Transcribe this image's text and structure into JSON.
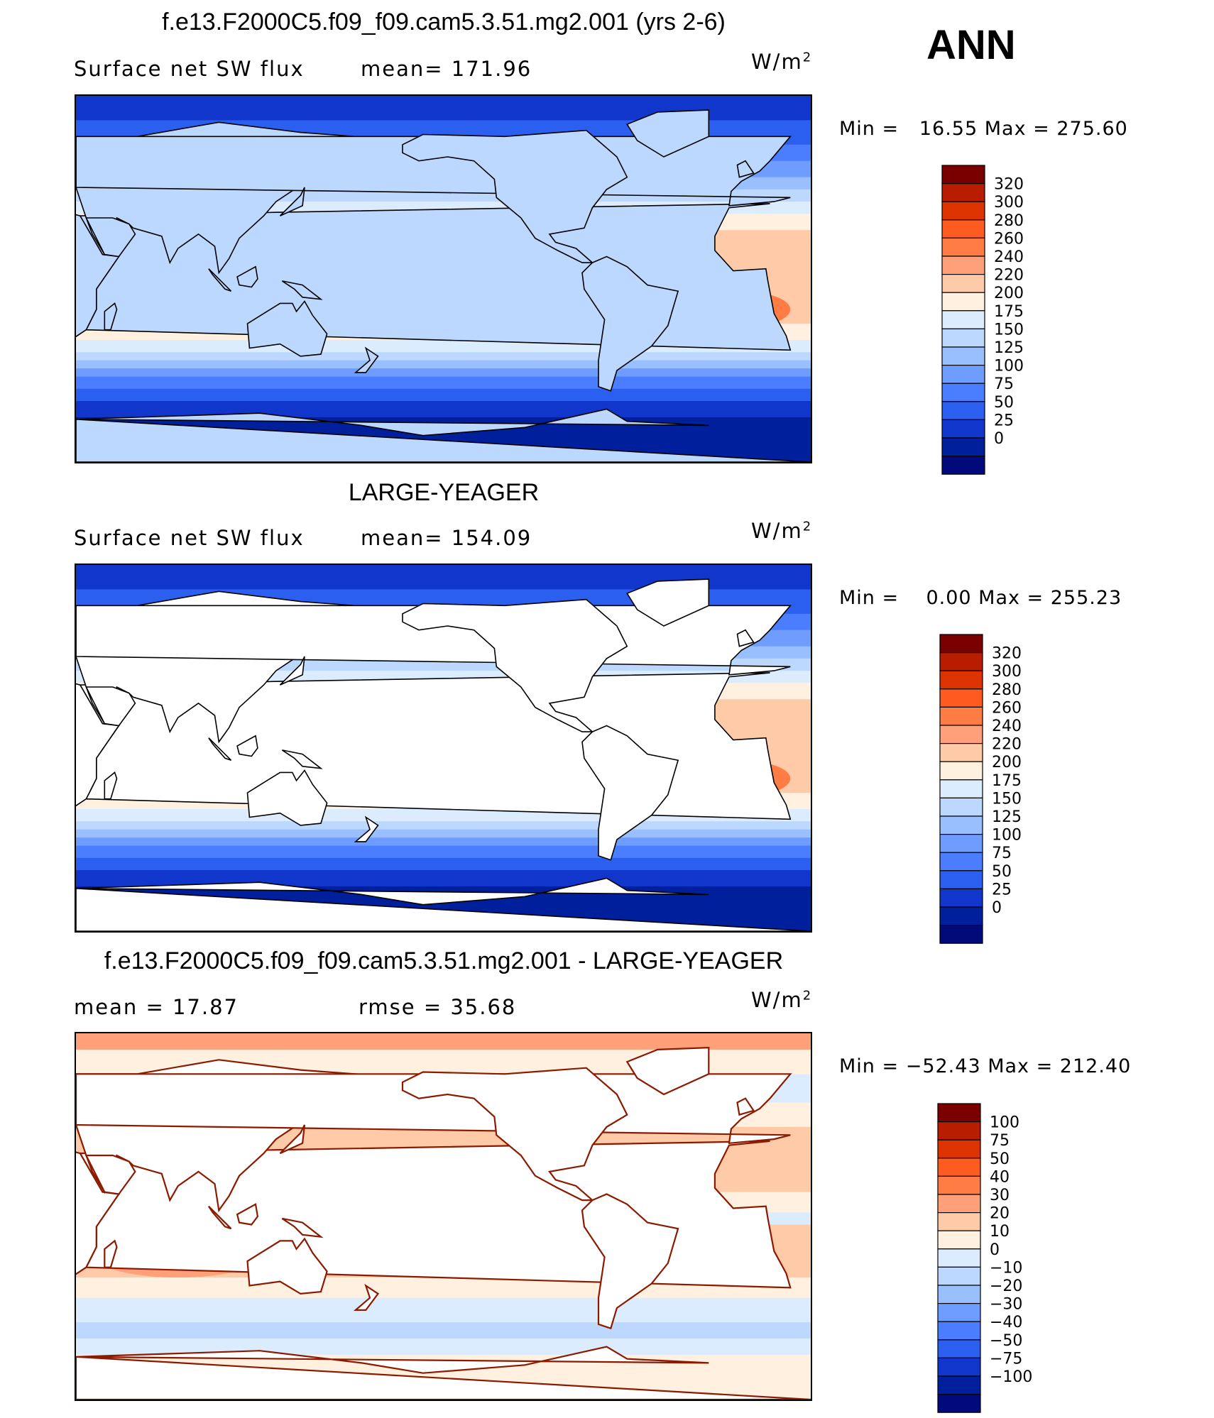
{
  "season": "ANN",
  "panels": [
    {
      "title": "f.e13.F2000C5.f09_f09.cam5.3.51.mg2.001 (yrs 2-6)",
      "left_text": "Surface net SW flux",
      "mid_text": "mean= 171.96",
      "units": "W/m",
      "units_sup": "2",
      "minmax": "Min =   16.55 Max = 275.60",
      "colorbar_levels": [
        "320",
        "300",
        "280",
        "260",
        "240",
        "220",
        "200",
        "175",
        "150",
        "125",
        "100",
        "75",
        "50",
        "25",
        "0"
      ],
      "colorbar_colors": [
        "#7a0000",
        "#b81d00",
        "#dd3300",
        "#ff5a1f",
        "#ff7c44",
        "#ffa07a",
        "#ffcaa8",
        "#fff0e0",
        "#dcecff",
        "#bcd8ff",
        "#99bfff",
        "#6f9dff",
        "#4a7dff",
        "#2a5fef",
        "#1036cc",
        "#001f9c",
        "#000a7a"
      ],
      "land_masked": false
    },
    {
      "title": "LARGE-YEAGER",
      "left_text": "Surface net SW flux",
      "mid_text": "mean= 154.09",
      "units": "W/m",
      "units_sup": "2",
      "minmax": "Min =    0.00 Max = 255.23",
      "colorbar_levels": [
        "320",
        "300",
        "280",
        "260",
        "240",
        "220",
        "200",
        "175",
        "150",
        "125",
        "100",
        "75",
        "50",
        "25",
        "0"
      ],
      "colorbar_colors": [
        "#7a0000",
        "#b81d00",
        "#dd3300",
        "#ff5a1f",
        "#ff7c44",
        "#ffa07a",
        "#ffcaa8",
        "#fff0e0",
        "#dcecff",
        "#bcd8ff",
        "#99bfff",
        "#6f9dff",
        "#4a7dff",
        "#2a5fef",
        "#1036cc",
        "#001f9c",
        "#000a7a"
      ],
      "land_masked": true
    },
    {
      "title": "f.e13.F2000C5.f09_f09.cam5.3.51.mg2.001 - LARGE-YEAGER",
      "left_text": "mean =    17.87",
      "mid_text": "rmse =    35.68",
      "units": "W/m",
      "units_sup": "2",
      "minmax": "Min = −52.43 Max = 212.40",
      "colorbar_levels": [
        "100",
        "75",
        "50",
        "40",
        "30",
        "20",
        "10",
        "0",
        "−10",
        "−20",
        "−30",
        "−40",
        "−50",
        "−75",
        "−100"
      ],
      "colorbar_colors": [
        "#7a0000",
        "#b81d00",
        "#dd3300",
        "#ff5a1f",
        "#ff7c44",
        "#ffa07a",
        "#ffcaa8",
        "#fff0e0",
        "#dcecff",
        "#bcd8ff",
        "#99bfff",
        "#6f9dff",
        "#4a7dff",
        "#2a5fef",
        "#1036cc",
        "#001f9c",
        "#000a7a"
      ],
      "land_masked": true
    }
  ],
  "chart_data": [
    {
      "type": "heatmap",
      "title": "f.e13.F2000C5.f09_f09.cam5.3.51.mg2.001 (yrs 2-6)",
      "subtitle": "Surface net SW flux",
      "units": "W/m2",
      "mean": 171.96,
      "min": 16.55,
      "max": 275.6,
      "levels": [
        0,
        25,
        50,
        75,
        100,
        125,
        150,
        175,
        200,
        220,
        240,
        260,
        280,
        300,
        320
      ]
    },
    {
      "type": "heatmap",
      "title": "LARGE-YEAGER",
      "subtitle": "Surface net SW flux",
      "units": "W/m2",
      "mean": 154.09,
      "min": 0.0,
      "max": 255.23,
      "levels": [
        0,
        25,
        50,
        75,
        100,
        125,
        150,
        175,
        200,
        220,
        240,
        260,
        280,
        300,
        320
      ]
    },
    {
      "type": "heatmap",
      "title": "f.e13.F2000C5.f09_f09.cam5.3.51.mg2.001 - LARGE-YEAGER",
      "units": "W/m2",
      "mean": 17.87,
      "rmse": 35.68,
      "min": -52.43,
      "max": 212.4,
      "levels": [
        -100,
        -75,
        -50,
        -40,
        -30,
        -20,
        -10,
        0,
        10,
        20,
        30,
        40,
        50,
        75,
        100
      ]
    }
  ]
}
